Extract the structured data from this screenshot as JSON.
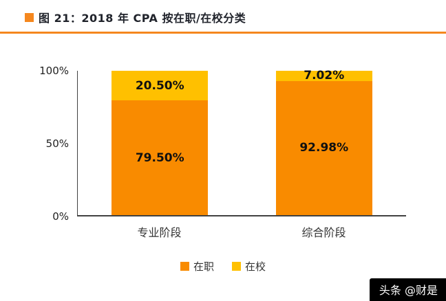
{
  "title": {
    "text": "图 21：2018 年 CPA 按在职/在校分类"
  },
  "chart_data": {
    "type": "bar",
    "stacked": true,
    "percent_stacked": true,
    "categories": [
      "专业阶段",
      "综合阶段"
    ],
    "series": [
      {
        "name": "在职",
        "color": "#F98B00",
        "values": [
          79.5,
          92.98
        ],
        "labels": [
          "79.50%",
          "92.98%"
        ]
      },
      {
        "name": "在校",
        "color": "#FFC000",
        "values": [
          20.5,
          7.02
        ],
        "labels": [
          "20.50%",
          "7.02%"
        ]
      }
    ],
    "y_ticks": [
      "100%",
      "50%",
      "0%"
    ],
    "ylim": [
      0,
      100
    ],
    "grid": false,
    "legend_position": "bottom"
  },
  "watermark": {
    "text": "头条 @财是"
  },
  "colors": {
    "accent_orange": "#F5871E",
    "bar_orange": "#F98B00",
    "bar_yellow": "#FFC000",
    "axis": "#404040"
  }
}
